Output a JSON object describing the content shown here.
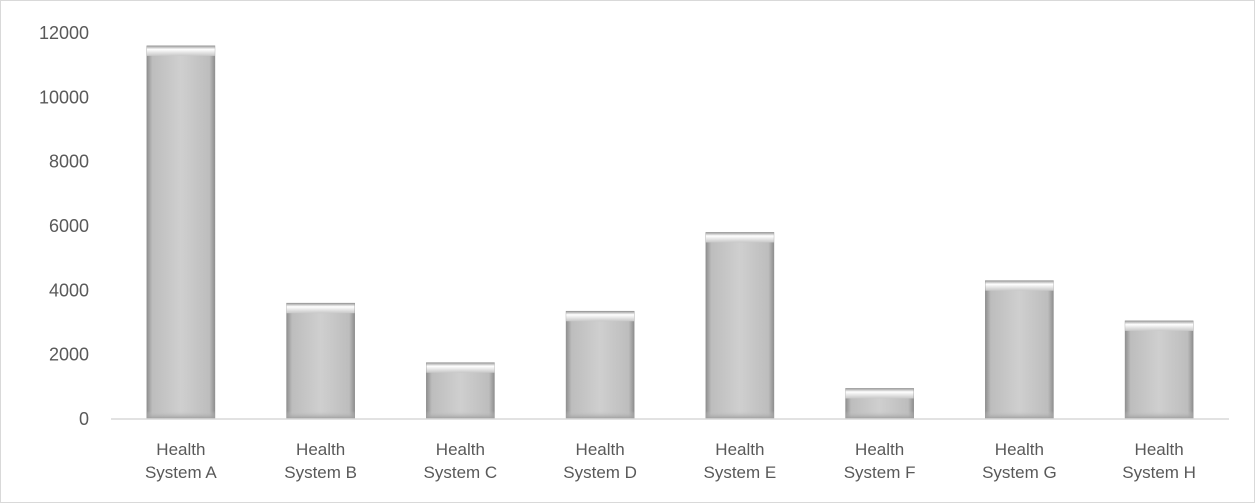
{
  "chart_data": {
    "type": "bar",
    "title": "",
    "xlabel": "",
    "ylabel": "",
    "categories": [
      [
        "Health",
        "System A"
      ],
      [
        "Health",
        "System B"
      ],
      [
        "Health",
        "System C"
      ],
      [
        "Health",
        "System D"
      ],
      [
        "Health",
        "System E"
      ],
      [
        "Health",
        "System F"
      ],
      [
        "Health",
        "System G"
      ],
      [
        "Health",
        "System H"
      ]
    ],
    "values": [
      11600,
      3600,
      1750,
      3350,
      5800,
      950,
      4300,
      3050
    ],
    "ylim": [
      0,
      12000
    ],
    "yticks": [
      0,
      2000,
      4000,
      6000,
      8000,
      10000,
      12000
    ],
    "grid": false,
    "legend": "none",
    "colors": {
      "bar_fill": "#c8c8c8",
      "bar_edge_dark": "#8c8c8c",
      "bar_top_light": "#ffffff",
      "axis_line": "#d9d9d9",
      "label_text": "#595959"
    }
  }
}
